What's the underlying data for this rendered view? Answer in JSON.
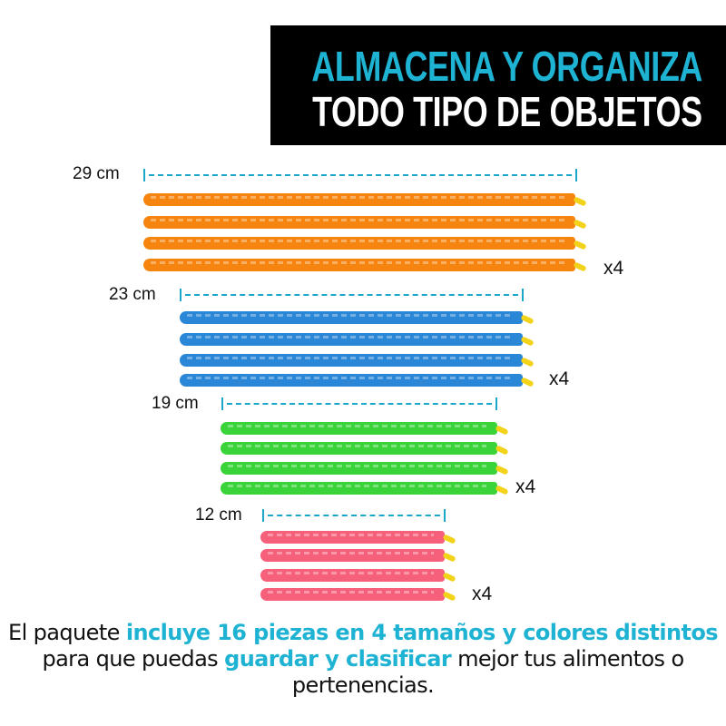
{
  "header": {
    "line1": "ALMACENA Y ORGANIZA",
    "line2": "TODO TIPO DE OBJETOS",
    "accent_color": "#1fb3d3"
  },
  "groups": [
    {
      "size": "29 cm",
      "quantity": "x4",
      "color": "#f5850f"
    },
    {
      "size": "23 cm",
      "quantity": "x4",
      "color": "#2a86d6"
    },
    {
      "size": "19 cm",
      "quantity": "x4",
      "color": "#3ad43a"
    },
    {
      "size": "12 cm",
      "quantity": "x4",
      "color": "#f7607a"
    }
  ],
  "footer": {
    "t1": "El paquete ",
    "t2": "incluye 16 piezas en 4 tamaños y colores distintos",
    "t3": " para que puedas ",
    "t4": "guardar y clasificar",
    "t5": " mejor tus alimentos o pertenencias."
  }
}
